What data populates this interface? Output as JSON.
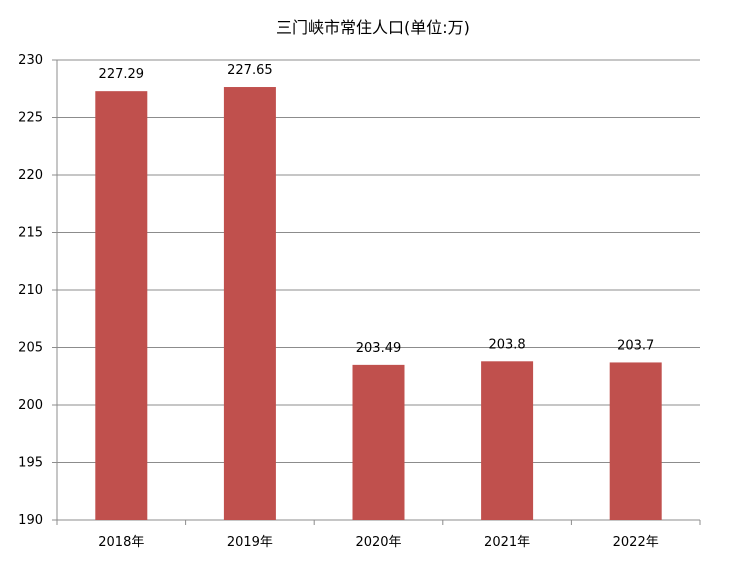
{
  "chart_data": {
    "type": "bar",
    "title": "三门峡市常住人口(单位:万)",
    "categories": [
      "2018年",
      "2019年",
      "2020年",
      "2021年",
      "2022年"
    ],
    "values": [
      227.29,
      227.65,
      203.49,
      203.8,
      203.7
    ],
    "data_labels": [
      "227.29",
      "227.65",
      "203.49",
      "203.8",
      "203.7"
    ],
    "ylim": [
      190,
      230
    ],
    "yticks": [
      190,
      195,
      200,
      205,
      210,
      215,
      220,
      225,
      230
    ],
    "grid": true,
    "legend": "none",
    "bar_color": "#c0504d",
    "grid_color": "#8c8c8c",
    "xlabel": "",
    "ylabel": ""
  }
}
